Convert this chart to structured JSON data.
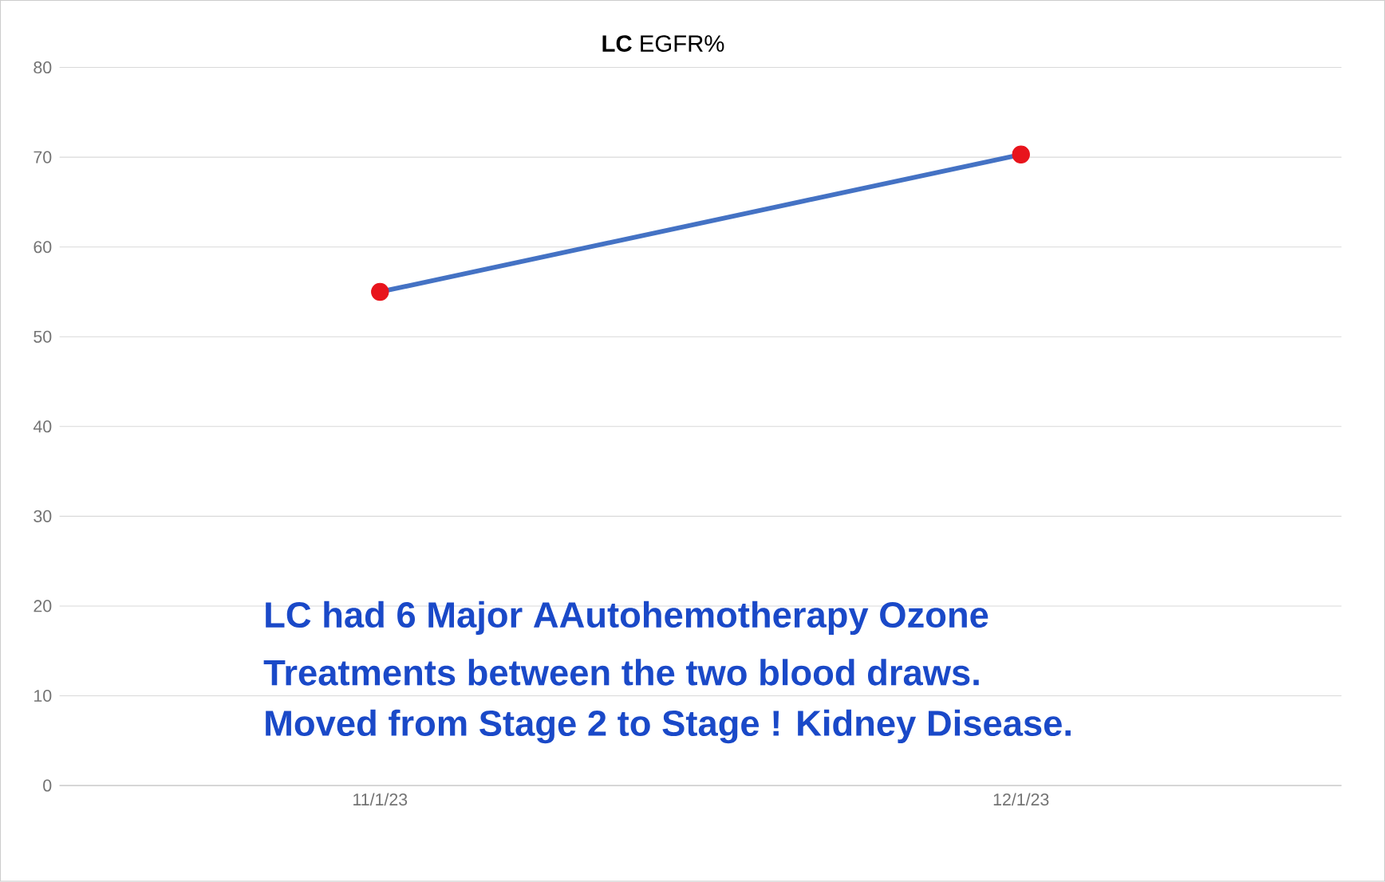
{
  "chart_data": {
    "type": "line",
    "title": "**LC** EGFR%",
    "categories": [
      "11/1/23",
      "12/1/23"
    ],
    "series": [
      {
        "color": "#4472c4",
        "colors": [
          "#e8141c",
          "#e8141c"
        ],
        "values": [
          55,
          70.3
        ]
      }
    ],
    "ylim": [
      0,
      80
    ],
    "yticks": [
      0,
      10,
      20,
      30,
      40,
      50,
      60,
      70,
      80
    ],
    "grid": "y",
    "marker": "circle",
    "annotations": [
      "LC had 6 Major AAutohemotherapy Ozone",
      "Treatments between the two blood draws.",
      "Moved from Stage 2 to Stage ! Kidney Disease."
    ]
  }
}
